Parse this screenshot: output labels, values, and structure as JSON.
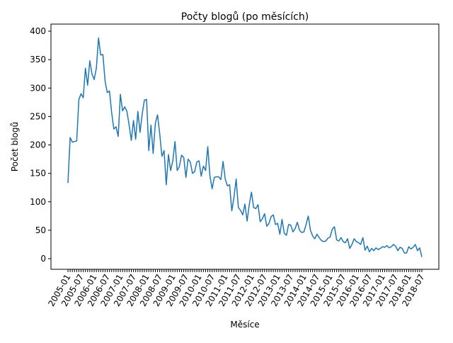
{
  "chart_data": {
    "type": "line",
    "title": "Počty blogů (po měsících)",
    "x_label": "Měsíce",
    "y_label": "Počet blogů",
    "categories": [
      "2005-01",
      null,
      null,
      null,
      null,
      null,
      "2005-07",
      null,
      null,
      null,
      null,
      null,
      "2006-01",
      null,
      null,
      null,
      null,
      null,
      "2006-07",
      null,
      null,
      null,
      null,
      null,
      "2007-01",
      null,
      null,
      null,
      null,
      null,
      "2007-07",
      null,
      null,
      null,
      null,
      null,
      "2008-01",
      null,
      null,
      null,
      null,
      null,
      "2008-07",
      null,
      null,
      null,
      null,
      null,
      "2009-01",
      null,
      null,
      null,
      null,
      null,
      "2009-07",
      null,
      null,
      null,
      null,
      null,
      "2010-01",
      null,
      null,
      null,
      null,
      null,
      "2010-07",
      null,
      null,
      null,
      null,
      null,
      "2011-01",
      null,
      null,
      null,
      null,
      null,
      "2011-07",
      null,
      null,
      null,
      null,
      null,
      "2012-01",
      null,
      null,
      null,
      null,
      null,
      "2012-07",
      null,
      null,
      null,
      null,
      null,
      "2013-01",
      null,
      null,
      null,
      null,
      null,
      "2013-07",
      null,
      null,
      null,
      null,
      null,
      "2014-01",
      null,
      null,
      null,
      null,
      null,
      "2014-07",
      null,
      null,
      null,
      null,
      null,
      "2015-01",
      null,
      null,
      null,
      null,
      null,
      "2015-07",
      null,
      null,
      null,
      null,
      null,
      "2016-01",
      null,
      null,
      null,
      null,
      null,
      "2016-07",
      null,
      null,
      null,
      null,
      null,
      "2017-01",
      null,
      null,
      null,
      null,
      null,
      "2017-07",
      null,
      null,
      null,
      null,
      null,
      "2018-01",
      null,
      null,
      null,
      null,
      null,
      "2018-07"
    ],
    "series": [
      {
        "name": "Počet blogů",
        "color": "#1f77b4",
        "values": [
          133,
          213,
          205,
          206,
          207,
          280,
          290,
          283,
          335,
          305,
          348,
          325,
          315,
          335,
          388,
          358,
          359,
          312,
          292,
          295,
          257,
          228,
          232,
          215,
          289,
          260,
          267,
          259,
          235,
          208,
          243,
          210,
          259,
          222,
          255,
          279,
          280,
          190,
          235,
          185,
          238,
          253,
          220,
          180,
          190,
          130,
          183,
          155,
          172,
          206,
          155,
          162,
          182,
          178,
          143,
          175,
          170,
          150,
          153,
          170,
          172,
          145,
          163,
          155,
          197,
          145,
          123,
          143,
          144,
          144,
          139,
          171,
          140,
          128,
          130,
          84,
          108,
          140,
          90,
          85,
          77,
          96,
          66,
          95,
          117,
          90,
          88,
          95,
          65,
          70,
          79,
          57,
          62,
          74,
          77,
          60,
          62,
          43,
          69,
          45,
          41,
          60,
          59,
          47,
          53,
          64,
          50,
          46,
          47,
          60,
          75,
          50,
          40,
          35,
          43,
          37,
          32,
          30,
          31,
          36,
          38,
          52,
          56,
          33,
          31,
          37,
          30,
          28,
          35,
          18,
          25,
          35,
          30,
          28,
          25,
          37,
          15,
          22,
          12,
          18,
          14,
          19,
          16,
          18,
          21,
          20,
          23,
          19,
          21,
          25,
          22,
          14,
          20,
          18,
          10,
          10,
          21,
          17,
          20,
          25,
          14,
          19,
          3
        ]
      }
    ],
    "ylim": [
      -18.7,
      412.5
    ],
    "yticks": [
      0,
      50,
      100,
      150,
      200,
      250,
      300,
      350,
      400
    ]
  }
}
